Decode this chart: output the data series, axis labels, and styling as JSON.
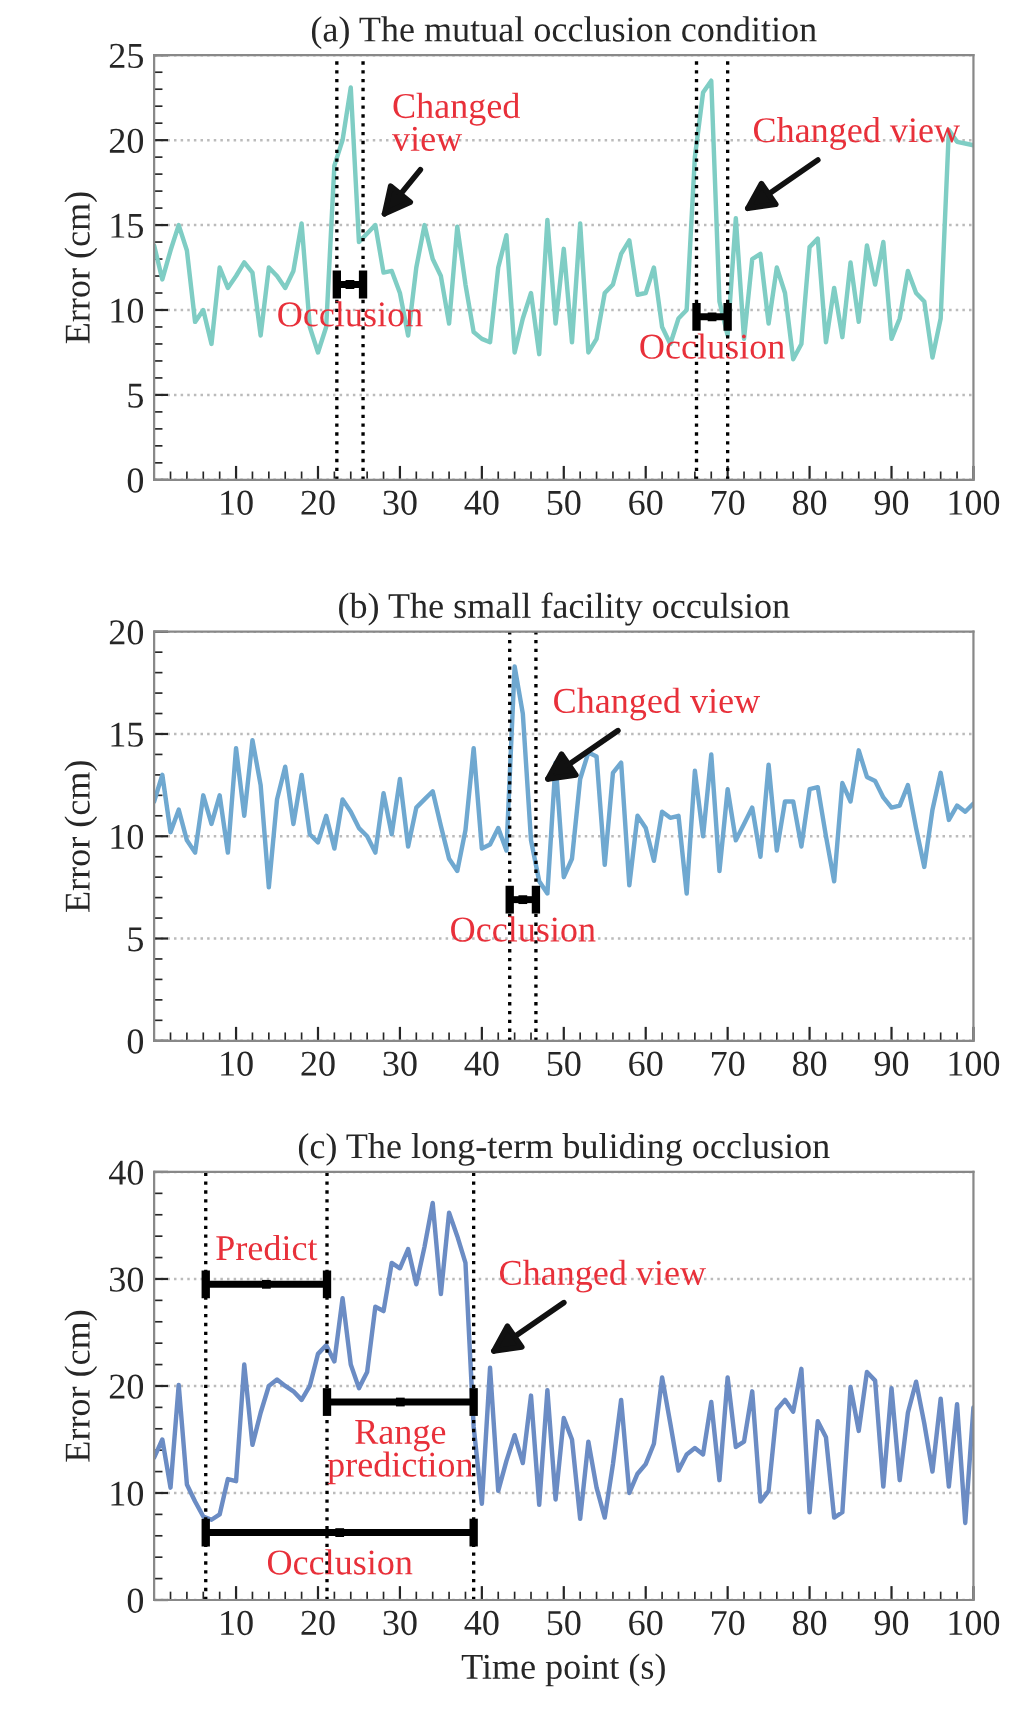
{
  "chart_data": [
    {
      "type": "line",
      "title": "(a) The mutual occlusion condition",
      "ylabel": "Error (cm)",
      "x": [
        0,
        1,
        2,
        3,
        4,
        5,
        6,
        7,
        8,
        9,
        10,
        11,
        12,
        13,
        14,
        15,
        16,
        17,
        18,
        19,
        20,
        21,
        22,
        23,
        24,
        25,
        26,
        27,
        28,
        29,
        30,
        31,
        32,
        33,
        34,
        35,
        36,
        37,
        38,
        39,
        40,
        41,
        42,
        43,
        44,
        45,
        46,
        47,
        48,
        49,
        50,
        51,
        52,
        53,
        54,
        55,
        56,
        57,
        58,
        59,
        60,
        61,
        62,
        63,
        64,
        65,
        66,
        67,
        68,
        69,
        70,
        71,
        72,
        73,
        74,
        75,
        76,
        77,
        78,
        79,
        80,
        81,
        82,
        83,
        84,
        85,
        86,
        87,
        88,
        89,
        90,
        91,
        92,
        93,
        94,
        95,
        96,
        97,
        98,
        99,
        100
      ],
      "series": [
        {
          "type": "scatter",
          "color": "#000000",
          "marker": "square",
          "x": [
            23.9,
            68.1
          ],
          "values": [
            11.5,
            9.6
          ],
          "xerrors": [
            [
              22.3,
              25.5
            ],
            [
              66.2,
              70
            ]
          ]
        },
        {
          "color": "#7fcdc4",
          "values": [
            13.8,
            11.8,
            13.5,
            15,
            13.5,
            9.3,
            10,
            8,
            12.5,
            11.3,
            12,
            12.8,
            12.2,
            8.5,
            12.5,
            12,
            11.3,
            12.3,
            15.1,
            9,
            7.5,
            9,
            18.5,
            20,
            23.1,
            14,
            14.5,
            15,
            12.2,
            12.3,
            11,
            8.5,
            12.5,
            15,
            13,
            12,
            9.2,
            14.9,
            11.5,
            8.7,
            8.3,
            8.1,
            12.5,
            14.4,
            7.5,
            9.5,
            11,
            7.4,
            15.3,
            9.2,
            13.6,
            8.1,
            15.1,
            7.5,
            8.3,
            11,
            11.5,
            13.3,
            14.1,
            10.9,
            11,
            12.5,
            9,
            8,
            9.5,
            10,
            19,
            22.8,
            23.5,
            10.5,
            8.5,
            15.4,
            8.3,
            13,
            13.3,
            9.2,
            12.5,
            11,
            7.1,
            8,
            13.7,
            14.2,
            8.1,
            11.3,
            8.4,
            12.8,
            9.3,
            13.8,
            11.5,
            14,
            8.3,
            9.5,
            12.3,
            11,
            10.5,
            7.2,
            9.5,
            20.6,
            19.9,
            19.8,
            19.7
          ]
        }
      ],
      "xlim": [
        0,
        100
      ],
      "xticks": [
        10,
        20,
        30,
        40,
        50,
        60,
        70,
        80,
        90,
        100
      ],
      "ylim": [
        0,
        25
      ],
      "yticks": [
        0,
        5,
        10,
        15,
        20,
        25
      ],
      "grid": "y",
      "ref_lines": [
        {
          "axis": "x",
          "value": 22.3,
          "color": "#000000",
          "line_style": "dotted"
        },
        {
          "axis": "x",
          "value": 25.5,
          "color": "#000000",
          "line_style": "dotted"
        },
        {
          "axis": "x",
          "value": 66.2,
          "color": "#000000",
          "line_style": "dotted"
        },
        {
          "axis": "x",
          "value": 70,
          "color": "#000000",
          "line_style": "dotted"
        }
      ],
      "annotations": [
        {
          "text": "Occlusion",
          "x": 23.9,
          "y": 11.5
        },
        {
          "text": "Changed\nview",
          "x": 27,
          "y": 15
        },
        {
          "text": "Occlusion",
          "x": 68.1,
          "y": 9.6
        },
        {
          "text": "Changed view",
          "x": 71,
          "y": 15.5
        }
      ]
    },
    {
      "type": "line",
      "title": "(b) The small facility occulsion",
      "ylabel": "Error (cm)",
      "x": [
        0,
        1,
        2,
        3,
        4,
        5,
        6,
        7,
        8,
        9,
        10,
        11,
        12,
        13,
        14,
        15,
        16,
        17,
        18,
        19,
        20,
        21,
        22,
        23,
        24,
        25,
        26,
        27,
        28,
        29,
        30,
        31,
        32,
        33,
        34,
        35,
        36,
        37,
        38,
        39,
        40,
        41,
        42,
        43,
        44,
        45,
        46,
        47,
        48,
        49,
        50,
        51,
        52,
        53,
        54,
        55,
        56,
        57,
        58,
        59,
        60,
        61,
        62,
        63,
        64,
        65,
        66,
        67,
        68,
        69,
        70,
        71,
        72,
        73,
        74,
        75,
        76,
        77,
        78,
        79,
        80,
        81,
        82,
        83,
        84,
        85,
        86,
        87,
        88,
        89,
        90,
        91,
        92,
        93,
        94,
        95,
        96,
        97,
        98,
        99,
        100
      ],
      "series": [
        {
          "type": "scatter",
          "color": "#000000",
          "marker": "square",
          "x": [
            45
          ],
          "values": [
            6.9
          ],
          "xerrors": [
            [
              43.4,
              46.6
            ]
          ]
        },
        {
          "color": "#6fa8d0",
          "values": [
            11.7,
            13,
            10.2,
            11.3,
            9.8,
            9.2,
            12,
            10.6,
            12,
            9.2,
            14.3,
            11,
            14.7,
            12.5,
            7.5,
            11.8,
            13.4,
            10.6,
            13,
            10.1,
            9.7,
            11,
            9.4,
            11.8,
            11.2,
            10.4,
            10,
            9.2,
            12.1,
            10.1,
            12.8,
            9.5,
            11.4,
            11.8,
            12.2,
            10.5,
            8.9,
            8.3,
            10.3,
            14.3,
            9.4,
            9.6,
            10.4,
            9.3,
            18.3,
            16,
            9.8,
            7.8,
            7.2,
            13.6,
            8,
            8.9,
            12.8,
            14.1,
            13.9,
            8.6,
            13.1,
            13.6,
            7.6,
            11,
            10.4,
            8.8,
            11.2,
            10.9,
            11,
            7.2,
            13.2,
            10,
            14,
            8.3,
            12.3,
            9.8,
            10.6,
            11.4,
            9,
            13.5,
            9.3,
            11.7,
            11.7,
            9.5,
            12.3,
            12.4,
            10,
            7.8,
            12.6,
            11.7,
            14.2,
            12.9,
            12.7,
            11.9,
            11.4,
            11.5,
            12.5,
            10.4,
            8.5,
            11.3,
            13.1,
            10.8,
            11.5,
            11.2,
            11.6
          ]
        }
      ],
      "xlim": [
        0,
        100
      ],
      "xticks": [
        10,
        20,
        30,
        40,
        50,
        60,
        70,
        80,
        90,
        100
      ],
      "ylim": [
        0,
        20
      ],
      "yticks": [
        0,
        5,
        10,
        15,
        20
      ],
      "grid": "y",
      "ref_lines": [
        {
          "axis": "x",
          "value": 43.4,
          "color": "#000000",
          "line_style": "dotted"
        },
        {
          "axis": "x",
          "value": 46.6,
          "color": "#000000",
          "line_style": "dotted"
        }
      ],
      "annotations": [
        {
          "text": "Occlusion",
          "x": 45,
          "y": 6.9
        },
        {
          "text": "Changed view",
          "x": 46.6,
          "y": 12.4
        }
      ]
    },
    {
      "type": "line",
      "title": "(c) The long-term buliding occlusion",
      "ylabel": "Error (cm)",
      "xlabel": "Time point (s)",
      "x": [
        0,
        1,
        2,
        3,
        4,
        5,
        6,
        7,
        8,
        9,
        10,
        11,
        12,
        13,
        14,
        15,
        16,
        17,
        18,
        19,
        20,
        21,
        22,
        23,
        24,
        25,
        26,
        27,
        28,
        29,
        30,
        31,
        32,
        33,
        34,
        35,
        36,
        37,
        38,
        39,
        40,
        41,
        42,
        43,
        44,
        45,
        46,
        47,
        48,
        49,
        50,
        51,
        52,
        53,
        54,
        55,
        56,
        57,
        58,
        59,
        60,
        61,
        62,
        63,
        64,
        65,
        66,
        67,
        68,
        69,
        70,
        71,
        72,
        73,
        74,
        75,
        76,
        77,
        78,
        79,
        80,
        81,
        82,
        83,
        84,
        85,
        86,
        87,
        88,
        89,
        90,
        91,
        92,
        93,
        94,
        95,
        96,
        97,
        98,
        99,
        100
      ],
      "series": [
        {
          "type": "scatter",
          "color": "#000000",
          "marker": "square",
          "x": [
            13.7,
            30.05,
            22.65
          ],
          "values": [
            29.5,
            18.5,
            6.3
          ],
          "xerrors": [
            [
              6.3,
              21.1
            ],
            [
              21.1,
              39
            ],
            [
              6.3,
              39
            ]
          ]
        },
        {
          "color": "#6b8cc4",
          "values": [
            13.3,
            15,
            10.5,
            20.1,
            10.8,
            9.2,
            7.8,
            7.5,
            8,
            11.3,
            11.1,
            22,
            14.5,
            17.5,
            20,
            20.6,
            20,
            19.5,
            18.7,
            20,
            23,
            23.8,
            22.3,
            28.2,
            22,
            19.8,
            21.3,
            27.4,
            27,
            31.5,
            31,
            32.8,
            29.5,
            33,
            37.1,
            28.6,
            36.2,
            34,
            31.5,
            16.2,
            9,
            21.7,
            10.2,
            13,
            15.4,
            12.8,
            19.1,
            8.9,
            19.6,
            9.4,
            17,
            15,
            7.6,
            14.8,
            10.5,
            7.7,
            12.7,
            18.7,
            10,
            11.8,
            12.7,
            14.6,
            20.8,
            16.5,
            12.1,
            13.6,
            14.2,
            13.6,
            18.5,
            11.2,
            20.8,
            14.3,
            14.8,
            19.5,
            9.2,
            10.2,
            17.8,
            18.7,
            17.6,
            21.6,
            8.2,
            16.7,
            15.2,
            7.7,
            8.2,
            19.9,
            15.8,
            21.3,
            20.5,
            10.6,
            19.8,
            11.2,
            17.5,
            20.4,
            16.5,
            12,
            18.8,
            10.6,
            18.3,
            7.2,
            18
          ]
        }
      ],
      "xlim": [
        0,
        100
      ],
      "xticks": [
        10,
        20,
        30,
        40,
        50,
        60,
        70,
        80,
        90,
        100
      ],
      "ylim": [
        0,
        40
      ],
      "yticks": [
        0,
        10,
        20,
        30,
        40
      ],
      "grid": "y",
      "ref_lines": [
        {
          "axis": "x",
          "value": 6.3,
          "color": "#000000",
          "line_style": "dotted"
        },
        {
          "axis": "x",
          "value": 21.1,
          "color": "#000000",
          "line_style": "dotted"
        },
        {
          "axis": "x",
          "value": 39,
          "color": "#000000",
          "line_style": "dotted"
        }
      ],
      "annotations": [
        {
          "text": "Predict",
          "x": 13.7,
          "y": 29.5
        },
        {
          "text": "Range\nprediction",
          "x": 30.05,
          "y": 18.5
        },
        {
          "text": "Occlusion",
          "x": 22.65,
          "y": 6.3
        },
        {
          "text": "Changed view",
          "x": 40,
          "y": 22.5
        }
      ]
    }
  ]
}
